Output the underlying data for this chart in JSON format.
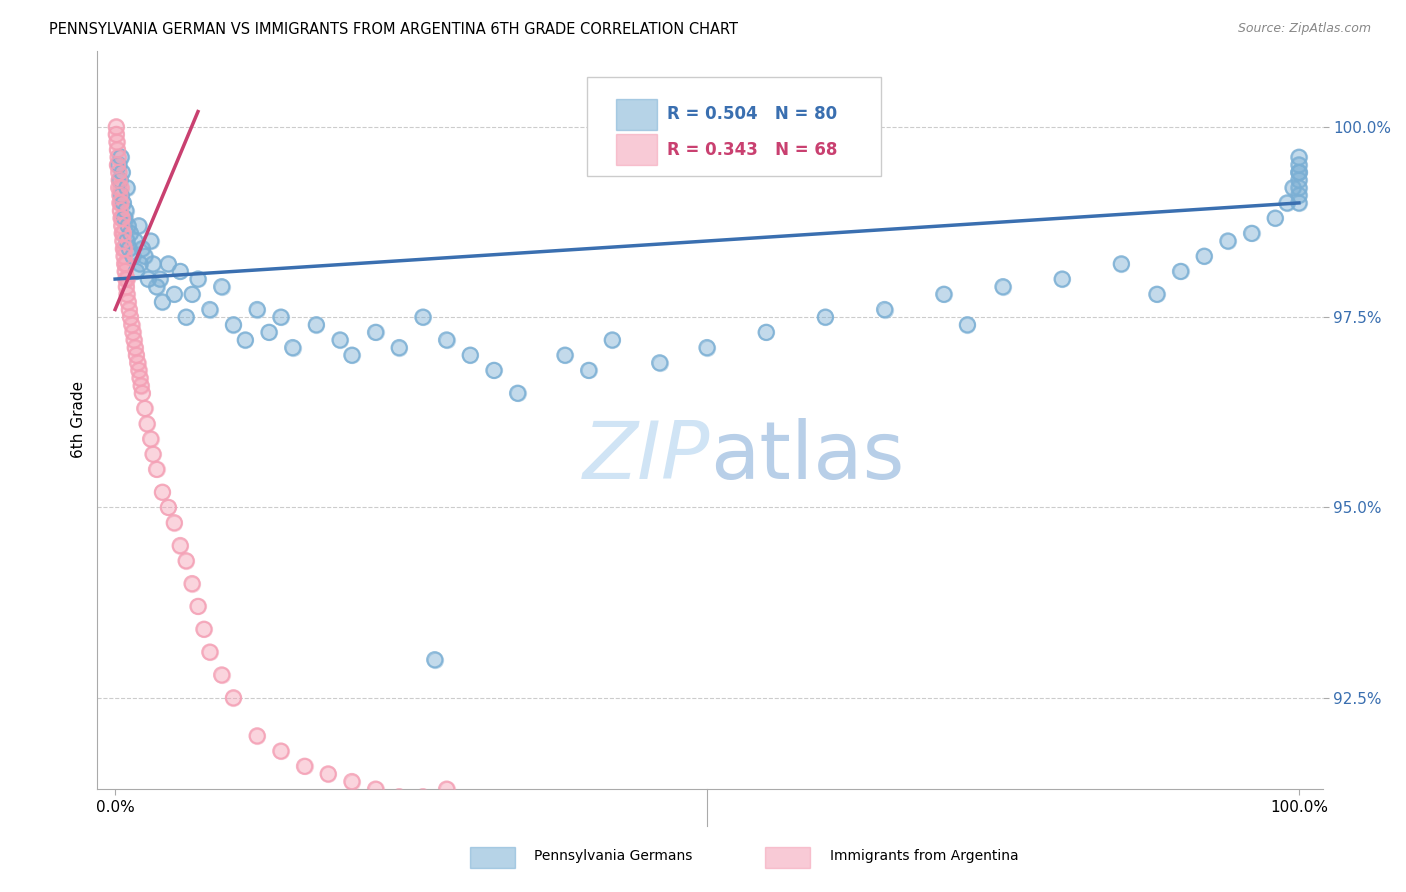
{
  "title": "PENNSYLVANIA GERMAN VS IMMIGRANTS FROM ARGENTINA 6TH GRADE CORRELATION CHART",
  "source": "Source: ZipAtlas.com",
  "ylabel": "6th Grade",
  "y_tick_labels": [
    "92.5%",
    "95.0%",
    "97.5%",
    "100.0%"
  ],
  "y_tick_values": [
    92.5,
    95.0,
    97.5,
    100.0
  ],
  "x_range": [
    0.0,
    100.0
  ],
  "y_range": [
    91.5,
    101.0
  ],
  "blue_R": 0.504,
  "blue_N": 80,
  "pink_R": 0.343,
  "pink_N": 68,
  "blue_color": "#7bafd4",
  "pink_color": "#f4a0b5",
  "blue_line_color": "#3a6fb0",
  "pink_line_color": "#c94070",
  "watermark_color": "#d0e4f5",
  "blue_line_x0": 0.0,
  "blue_line_y0": 98.0,
  "blue_line_x1": 100.0,
  "blue_line_y1": 99.0,
  "pink_line_x0": 0.0,
  "pink_line_y0": 97.6,
  "pink_line_x1": 7.0,
  "pink_line_y1": 100.2,
  "blue_scatter_x": [
    0.3,
    0.4,
    0.5,
    0.5,
    0.6,
    0.7,
    0.8,
    0.9,
    1.0,
    1.0,
    1.1,
    1.2,
    1.3,
    1.5,
    1.7,
    1.8,
    2.0,
    2.1,
    2.3,
    2.5,
    2.8,
    3.0,
    3.2,
    3.5,
    3.8,
    4.0,
    4.5,
    5.0,
    5.5,
    6.0,
    6.5,
    7.0,
    8.0,
    9.0,
    10.0,
    11.0,
    12.0,
    13.0,
    14.0,
    15.0,
    17.0,
    19.0,
    20.0,
    22.0,
    24.0,
    26.0,
    27.0,
    28.0,
    30.0,
    32.0,
    34.0,
    38.0,
    40.0,
    42.0,
    46.0,
    50.0,
    55.0,
    60.0,
    65.0,
    70.0,
    72.0,
    75.0,
    80.0,
    85.0,
    88.0,
    90.0,
    92.0,
    94.0,
    96.0,
    98.0,
    99.0,
    99.5,
    100.0,
    100.0,
    100.0,
    100.0,
    100.0,
    100.0,
    100.0,
    100.0
  ],
  "blue_scatter_y": [
    99.5,
    99.3,
    99.6,
    99.1,
    99.4,
    99.0,
    98.8,
    98.9,
    99.2,
    98.5,
    98.7,
    98.4,
    98.6,
    98.3,
    98.5,
    98.1,
    98.7,
    98.2,
    98.4,
    98.3,
    98.0,
    98.5,
    98.2,
    97.9,
    98.0,
    97.7,
    98.2,
    97.8,
    98.1,
    97.5,
    97.8,
    98.0,
    97.6,
    97.9,
    97.4,
    97.2,
    97.6,
    97.3,
    97.5,
    97.1,
    97.4,
    97.2,
    97.0,
    97.3,
    97.1,
    97.5,
    93.0,
    97.2,
    97.0,
    96.8,
    96.5,
    97.0,
    96.8,
    97.2,
    96.9,
    97.1,
    97.3,
    97.5,
    97.6,
    97.8,
    97.4,
    97.9,
    98.0,
    98.2,
    97.8,
    98.1,
    98.3,
    98.5,
    98.6,
    98.8,
    99.0,
    99.2,
    99.5,
    99.4,
    99.3,
    99.6,
    99.2,
    99.0,
    99.4,
    99.1
  ],
  "pink_scatter_x": [
    0.1,
    0.1,
    0.15,
    0.2,
    0.2,
    0.25,
    0.3,
    0.3,
    0.35,
    0.4,
    0.4,
    0.45,
    0.5,
    0.5,
    0.5,
    0.55,
    0.6,
    0.6,
    0.65,
    0.7,
    0.7,
    0.75,
    0.8,
    0.8,
    0.85,
    0.9,
    0.9,
    0.95,
    1.0,
    1.0,
    1.1,
    1.2,
    1.3,
    1.4,
    1.5,
    1.6,
    1.7,
    1.8,
    1.9,
    2.0,
    2.1,
    2.2,
    2.3,
    2.5,
    2.7,
    3.0,
    3.2,
    3.5,
    4.0,
    4.5,
    5.0,
    5.5,
    6.0,
    6.5,
    7.0,
    7.5,
    8.0,
    9.0,
    10.0,
    12.0,
    14.0,
    16.0,
    18.0,
    20.0,
    22.0,
    24.0,
    26.0,
    28.0
  ],
  "pink_scatter_y": [
    99.9,
    100.0,
    99.8,
    99.7,
    99.5,
    99.6,
    99.4,
    99.2,
    99.3,
    99.1,
    99.0,
    98.9,
    98.8,
    99.0,
    99.2,
    98.7,
    98.6,
    98.8,
    98.5,
    98.4,
    98.6,
    98.3,
    98.2,
    98.4,
    98.1,
    98.0,
    98.2,
    97.9,
    97.8,
    98.0,
    97.7,
    97.6,
    97.5,
    97.4,
    97.3,
    97.2,
    97.1,
    97.0,
    96.9,
    96.8,
    96.7,
    96.6,
    96.5,
    96.3,
    96.1,
    95.9,
    95.7,
    95.5,
    95.2,
    95.0,
    94.8,
    94.5,
    94.3,
    94.0,
    93.7,
    93.4,
    93.1,
    92.8,
    92.5,
    92.0,
    91.8,
    91.6,
    91.5,
    91.4,
    91.3,
    91.2,
    91.2,
    91.3
  ]
}
